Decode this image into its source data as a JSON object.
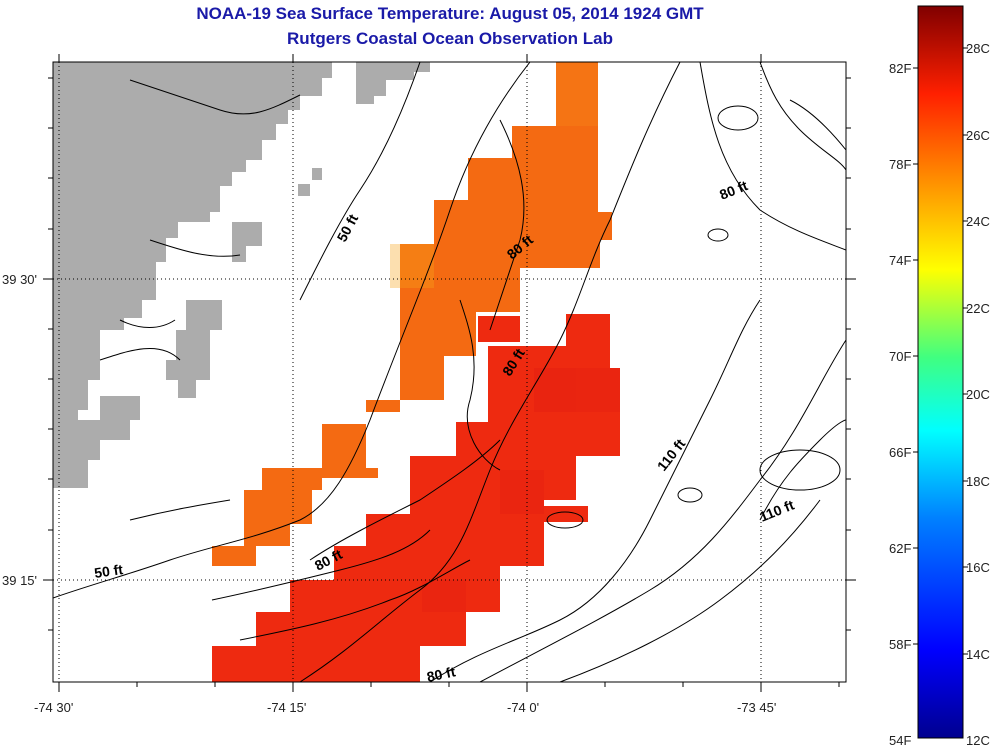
{
  "title": "NOAA-19 Sea Surface Temperature:  August 05, 2014 1924 GMT",
  "subtitle": "Rutgers Coastal Ocean Observation Lab",
  "colors": {
    "land": "#acacac",
    "sst_warm_orange": "#f46a12",
    "sst_red": "#ee2a10",
    "contour": "#000000",
    "title": "#1a1aa8"
  },
  "map": {
    "lon_ticks": [
      "-74 30'",
      "-74 15'",
      "-74 0'",
      "-73 45'"
    ],
    "lat_ticks": [
      "39 30'",
      "39 15'"
    ],
    "depth_labels": [
      "50 ft",
      "50 ft",
      "80 ft",
      "80 ft",
      "80 ft",
      "80 ft",
      "80 ft",
      "110 ft",
      "110 ft"
    ]
  },
  "colorbar": {
    "fahrenheit": [
      "82F",
      "78F",
      "74F",
      "70F",
      "66F",
      "62F",
      "58F",
      "54F"
    ],
    "celsius": [
      "28C",
      "26C",
      "24C",
      "22C",
      "20C",
      "18C",
      "16C",
      "14C",
      "12C"
    ],
    "range_c": [
      12,
      29
    ]
  }
}
